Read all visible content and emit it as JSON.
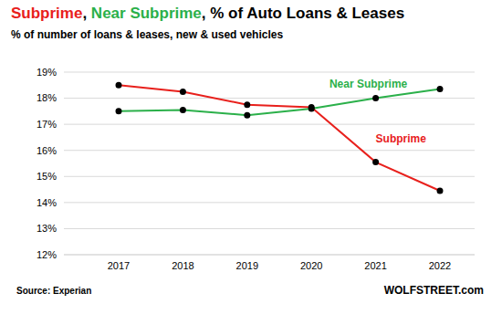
{
  "chart_data": {
    "type": "line",
    "title": "Subprime, Near Subprime, % of Auto Loans & Leases",
    "subtitle": "% of number of loans & leases, new & used vehicles",
    "categories": [
      "2017",
      "2018",
      "2019",
      "2020",
      "2021",
      "2022"
    ],
    "series": [
      {
        "name": "Subprime",
        "color": "#e8201c",
        "marker": "circle",
        "values": [
          18.5,
          18.25,
          17.75,
          17.65,
          15.55,
          14.45
        ]
      },
      {
        "name": "Near Subprime",
        "color": "#2bb04a",
        "marker": "circle",
        "values": [
          17.5,
          17.55,
          17.35,
          17.6,
          18.0,
          18.35
        ]
      }
    ],
    "ylim": [
      12,
      19
    ],
    "yticks": [
      {
        "value": 12,
        "label": "12%"
      },
      {
        "value": 13,
        "label": "13%"
      },
      {
        "value": 14,
        "label": "14%"
      },
      {
        "value": 15,
        "label": "15%"
      },
      {
        "value": 16,
        "label": "16%"
      },
      {
        "value": 17,
        "label": "17%"
      },
      {
        "value": 18,
        "label": "18%"
      },
      {
        "value": 19,
        "label": "19%"
      }
    ],
    "grid": true,
    "annotations": [
      "Source: Experian",
      "WOLFSTREET.com"
    ]
  }
}
